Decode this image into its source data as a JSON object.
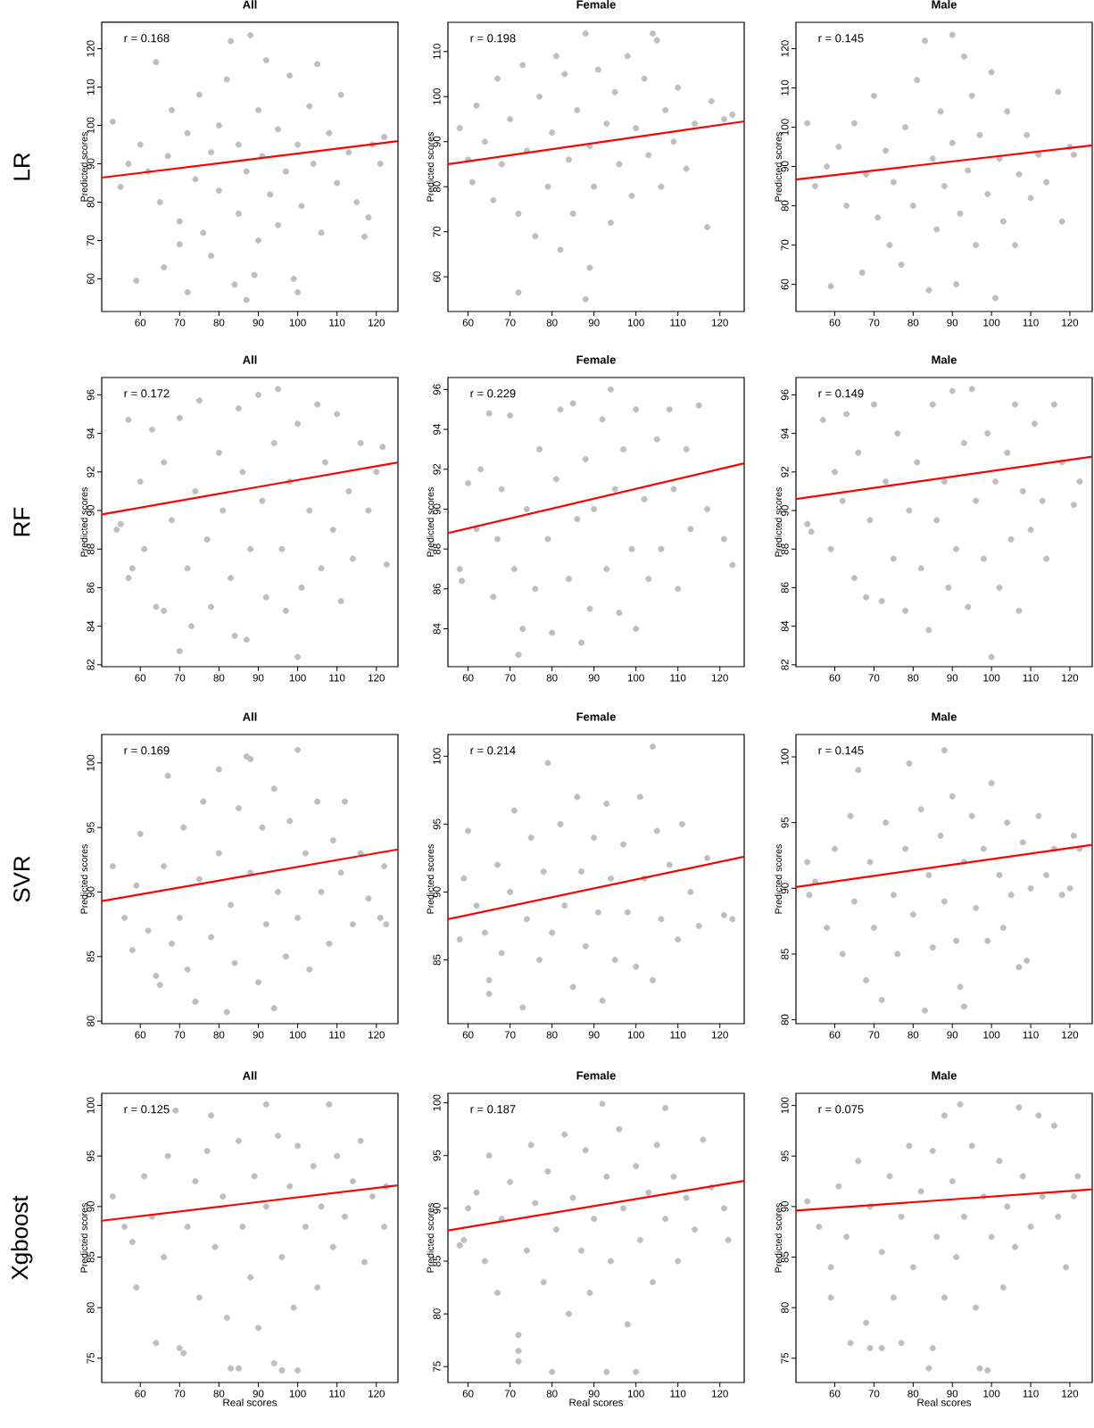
{
  "chart_data": [
    {
      "type": "scatter",
      "title": "All",
      "subtitle": "LR",
      "ylabel": "Predicted scores",
      "annotations": [
        "r = 0.168"
      ],
      "xlim": [
        50.2,
        125.5
      ],
      "ylim": [
        51.5,
        126.9
      ],
      "xticks": [
        60,
        70,
        80,
        90,
        100,
        110,
        120
      ],
      "yticks": [
        60,
        70,
        80,
        90,
        100,
        110,
        120
      ],
      "series": [
        {
          "color": "#bebebe",
          "marker": "circle",
          "x": [
            53,
            55,
            57,
            59,
            60,
            62,
            64,
            65,
            66,
            67,
            68,
            70,
            70,
            72,
            72,
            74,
            75,
            76,
            78,
            78,
            80,
            80,
            82,
            83,
            84,
            85,
            85,
            87,
            87,
            88,
            89,
            90,
            90,
            91,
            92,
            93,
            95,
            95,
            97,
            98,
            99,
            100,
            100,
            101,
            103,
            104,
            105,
            106,
            108,
            110,
            111,
            113,
            115,
            117,
            118,
            119,
            121,
            122
          ],
          "values": [
            101,
            84,
            90,
            59.5,
            95,
            88,
            116.5,
            80,
            63,
            92,
            104,
            75,
            69,
            56.5,
            98,
            86,
            108,
            72,
            93,
            66,
            83,
            100,
            112,
            122,
            58.5,
            77,
            95,
            54.5,
            88,
            123.5,
            61,
            104,
            70,
            92,
            117,
            82,
            99,
            74,
            88,
            113,
            60,
            56.5,
            95,
            79,
            105,
            90,
            116,
            72,
            98,
            85,
            108,
            93,
            80,
            71,
            76,
            95,
            90,
            97
          ]
        },
        {
          "type": "line",
          "color": "#ff0000",
          "x": [
            50.2,
            125.5
          ],
          "values": [
            86.4,
            95.9
          ]
        }
      ]
    },
    {
      "type": "scatter",
      "title": "Female",
      "ylabel": "Predicted scores",
      "annotations": [
        "r = 0.198"
      ],
      "xlim": [
        55.2,
        125.8
      ],
      "ylim": [
        52.3,
        116.5
      ],
      "xticks": [
        60,
        70,
        80,
        90,
        100,
        110,
        120
      ],
      "yticks": [
        60,
        70,
        80,
        90,
        100,
        110
      ],
      "series": [
        {
          "color": "#bebebe",
          "marker": "circle",
          "x": [
            58,
            60,
            61,
            62,
            64,
            66,
            67,
            68,
            70,
            72,
            72,
            73,
            74,
            76,
            77,
            79,
            80,
            81,
            82,
            83,
            84,
            85,
            86,
            88,
            88,
            89,
            89,
            90,
            91,
            93,
            94,
            95,
            96,
            98,
            99,
            100,
            102,
            103,
            104,
            105,
            106,
            107,
            109,
            110,
            112,
            114,
            117,
            118,
            121,
            123
          ],
          "values": [
            93,
            86,
            81,
            98,
            90,
            77,
            104,
            85,
            95,
            56.5,
            74,
            107,
            88,
            69,
            100,
            80,
            92,
            109,
            66,
            105,
            86,
            74,
            97,
            55,
            114,
            62,
            89,
            80,
            106,
            94,
            72,
            101,
            85,
            109,
            78,
            93,
            104,
            87,
            114,
            112.5,
            80,
            97,
            90,
            102,
            84,
            94,
            71,
            99,
            95,
            96
          ]
        },
        {
          "type": "line",
          "color": "#ff0000",
          "x": [
            55.2,
            125.8
          ],
          "values": [
            85.0,
            94.5
          ]
        }
      ]
    },
    {
      "type": "scatter",
      "title": "Male",
      "ylabel": "Predicted scores",
      "annotations": [
        "r = 0.145"
      ],
      "xlim": [
        50.1,
        125.7
      ],
      "ylim": [
        53.1,
        126.7
      ],
      "xticks": [
        60,
        70,
        80,
        90,
        100,
        110,
        120
      ],
      "yticks": [
        60,
        70,
        80,
        90,
        100,
        110,
        120
      ],
      "series": [
        {
          "color": "#bebebe",
          "marker": "circle",
          "x": [
            53,
            55,
            58,
            59,
            61,
            63,
            65,
            67,
            68,
            70,
            71,
            73,
            74,
            75,
            77,
            78,
            80,
            81,
            83,
            84,
            85,
            86,
            87,
            88,
            90,
            90,
            91,
            92,
            93,
            94,
            95,
            96,
            97,
            99,
            100,
            101,
            102,
            103,
            104,
            106,
            107,
            109,
            110,
            112,
            114,
            117,
            118,
            120,
            121
          ],
          "values": [
            101,
            85,
            90,
            59.5,
            95,
            80,
            101,
            63,
            88,
            108,
            77,
            94,
            70,
            86,
            65,
            100,
            80,
            112,
            122,
            58.5,
            92,
            74,
            104,
            85,
            123.5,
            96,
            60,
            78,
            118,
            89,
            108,
            70,
            98,
            83,
            114,
            56.5,
            92,
            76,
            104,
            70,
            88,
            98,
            82,
            93,
            86,
            109,
            76,
            95,
            93
          ]
        },
        {
          "type": "line",
          "color": "#ff0000",
          "x": [
            50.1,
            125.7
          ],
          "values": [
            86.7,
            95.4
          ]
        }
      ]
    },
    {
      "type": "scatter",
      "title": "All",
      "subtitle": "RF",
      "ylabel": "Predicted scores",
      "annotations": [
        "r = 0.172"
      ],
      "xlim": [
        50.2,
        125.5
      ],
      "ylim": [
        81.9,
        96.9
      ],
      "xticks": [
        60,
        70,
        80,
        90,
        100,
        110,
        120
      ],
      "yticks": [
        82,
        84,
        86,
        88,
        90,
        92,
        94,
        96
      ],
      "series": [
        {
          "color": "#bebebe",
          "marker": "circle",
          "x": [
            54,
            55,
            57,
            57,
            58,
            60,
            61,
            63,
            64,
            66,
            66,
            68,
            70,
            70,
            72,
            73,
            74,
            75,
            77,
            78,
            80,
            81,
            83,
            84,
            85,
            86,
            87,
            88,
            90,
            91,
            92,
            94,
            95,
            96,
            97,
            98,
            100,
            100,
            101,
            103,
            105,
            106,
            107,
            109,
            110,
            111,
            113,
            114,
            116,
            118,
            120,
            121.6,
            122.6
          ],
          "values": [
            89,
            89.3,
            86.5,
            94.7,
            87,
            91.5,
            88,
            94.2,
            85,
            84.8,
            92.5,
            89.5,
            82.7,
            94.8,
            87,
            84,
            91,
            95.7,
            88.5,
            85,
            93,
            90,
            86.5,
            83.5,
            95.3,
            92,
            83.3,
            88,
            96,
            90.5,
            85.5,
            93.5,
            96.3,
            88,
            84.8,
            91.5,
            82.4,
            94.5,
            86,
            90,
            95.5,
            87,
            92.5,
            89,
            95,
            85.3,
            91,
            87.5,
            93.5,
            90,
            92,
            93.3,
            87.2
          ]
        },
        {
          "type": "line",
          "color": "#ff0000",
          "x": [
            50.2,
            125.5
          ],
          "values": [
            89.8,
            92.5
          ]
        }
      ]
    },
    {
      "type": "scatter",
      "title": "Female",
      "ylabel": "Predicted scores",
      "annotations": [
        "r = 0.229"
      ],
      "xlim": [
        55.2,
        125.8
      ],
      "ylim": [
        82.1,
        96.6
      ],
      "xticks": [
        60,
        70,
        80,
        90,
        100,
        110,
        120
      ],
      "yticks": [
        84,
        86,
        88,
        90,
        92,
        94,
        96
      ],
      "series": [
        {
          "color": "#bebebe",
          "marker": "circle",
          "x": [
            58,
            58.5,
            60,
            62,
            63,
            65,
            66,
            67,
            68,
            70,
            71,
            72,
            73,
            74,
            76,
            77,
            79,
            80,
            81,
            82,
            84,
            85,
            86,
            87,
            88,
            89,
            90,
            92,
            93,
            94,
            95,
            96,
            97,
            99,
            100,
            100,
            102,
            103,
            105,
            106,
            108,
            109,
            110,
            112,
            113,
            115,
            117,
            121,
            123
          ],
          "values": [
            87,
            86.4,
            91.3,
            89,
            92,
            94.8,
            85.6,
            88.5,
            91,
            94.7,
            87,
            82.7,
            84,
            90,
            86,
            93,
            88.5,
            83.8,
            91.5,
            95,
            86.5,
            95.3,
            89.5,
            83.3,
            92.5,
            85,
            90,
            94.5,
            87,
            96,
            91,
            84.8,
            93,
            88,
            84,
            95,
            90.5,
            86.5,
            93.5,
            88,
            95,
            91,
            86,
            93,
            89,
            95.2,
            90,
            88.5,
            87.2
          ]
        },
        {
          "type": "line",
          "color": "#ff0000",
          "x": [
            55.2,
            125.8
          ],
          "values": [
            88.8,
            92.3
          ]
        }
      ]
    },
    {
      "type": "scatter",
      "title": "Male",
      "ylabel": "Predicted scores",
      "annotations": [
        "r = 0.149"
      ],
      "xlim": [
        50.1,
        125.7
      ],
      "ylim": [
        81.9,
        96.9
      ],
      "xticks": [
        60,
        70,
        80,
        90,
        100,
        110,
        120
      ],
      "yticks": [
        82,
        84,
        86,
        88,
        90,
        92,
        94,
        96
      ],
      "series": [
        {
          "color": "#bebebe",
          "marker": "circle",
          "x": [
            53,
            54,
            57,
            59,
            60,
            62,
            63,
            65,
            66,
            68,
            69,
            70,
            72,
            73,
            75,
            76,
            78,
            79,
            81,
            82,
            84,
            85,
            86,
            88,
            89,
            90,
            91,
            93,
            94,
            95,
            96,
            98,
            99,
            100,
            101,
            102,
            104,
            105,
            106,
            107,
            108,
            110,
            111,
            113,
            114,
            116,
            118,
            121,
            122.5
          ],
          "values": [
            89.3,
            88.9,
            94.7,
            88,
            92,
            90.5,
            95,
            86.5,
            93,
            85.5,
            89.5,
            95.5,
            85.3,
            91.5,
            87.5,
            94,
            84.8,
            90,
            92.5,
            87,
            83.8,
            95.5,
            89.5,
            91.5,
            86,
            96.2,
            88,
            93.5,
            85,
            96.3,
            90.5,
            87.5,
            94,
            82.4,
            91.5,
            86,
            93,
            88.5,
            95.5,
            84.8,
            91,
            89,
            94.5,
            90.5,
            87.5,
            95.5,
            92.5,
            90.3,
            91.5
          ]
        },
        {
          "type": "line",
          "color": "#ff0000",
          "x": [
            50.1,
            125.7
          ],
          "values": [
            90.6,
            92.8
          ]
        }
      ]
    },
    {
      "type": "scatter",
      "title": "All",
      "subtitle": "SVR",
      "ylabel": "Predicted scores",
      "annotations": [
        "r = 0.169"
      ],
      "xlim": [
        50.2,
        125.5
      ],
      "ylim": [
        79.8,
        102.2
      ],
      "xticks": [
        60,
        70,
        80,
        90,
        100,
        110,
        120
      ],
      "yticks": [
        80,
        85,
        90,
        95,
        100
      ],
      "series": [
        {
          "color": "#bebebe",
          "marker": "circle",
          "x": [
            53,
            56,
            58,
            59,
            60,
            62,
            64,
            65,
            66,
            67,
            68,
            70,
            71,
            72,
            74,
            75,
            76,
            78,
            80,
            80,
            82,
            83,
            84,
            85,
            87,
            88,
            88,
            90,
            91,
            92,
            94,
            94,
            95,
            97,
            98,
            100,
            100,
            102,
            103,
            105,
            106,
            108,
            109,
            111,
            112,
            114,
            116,
            118,
            121,
            122,
            122.5
          ],
          "values": [
            92,
            88,
            85.5,
            90.5,
            94.5,
            87,
            83.5,
            82.8,
            92,
            99,
            86,
            88,
            95,
            84,
            81.5,
            91,
            97,
            86.5,
            99.5,
            93,
            80.7,
            89,
            84.5,
            96.5,
            100.5,
            100.3,
            91.5,
            83,
            95,
            87.5,
            81,
            98,
            90,
            85,
            95.5,
            101,
            88,
            93,
            84,
            97,
            90,
            86,
            94,
            91.5,
            97,
            87.5,
            93,
            89.5,
            88,
            92,
            87.5
          ]
        },
        {
          "type": "line",
          "color": "#ff0000",
          "x": [
            50.2,
            125.5
          ],
          "values": [
            89.3,
            93.3
          ]
        }
      ]
    },
    {
      "type": "scatter",
      "title": "Female",
      "ylabel": "Predicted scores",
      "annotations": [
        "r = 0.214"
      ],
      "xlim": [
        55.2,
        125.8
      ],
      "ylim": [
        80.3,
        101.6
      ],
      "xticks": [
        60,
        70,
        80,
        90,
        100,
        110,
        120
      ],
      "yticks": [
        85,
        90,
        95,
        100
      ],
      "series": [
        {
          "color": "#bebebe",
          "marker": "circle",
          "x": [
            58,
            59,
            60,
            62,
            64,
            65,
            65,
            67,
            68,
            70,
            71,
            73,
            74,
            75,
            77,
            78,
            79,
            80,
            82,
            83,
            85,
            86,
            87,
            88,
            90,
            91,
            92,
            93,
            94,
            95,
            97,
            98,
            100,
            101,
            102,
            104,
            104,
            105,
            106,
            108,
            110,
            111,
            113,
            115,
            117,
            121,
            123
          ],
          "values": [
            86.5,
            91,
            94.5,
            89,
            87,
            83.5,
            82.5,
            92,
            85.5,
            90,
            96,
            81.5,
            88,
            94,
            85,
            91.5,
            99.5,
            87,
            95,
            89,
            83,
            97,
            91.5,
            86,
            94,
            88.5,
            82,
            96.5,
            91,
            85,
            93.5,
            88.5,
            84.5,
            97,
            91,
            83.5,
            100.7,
            94.5,
            88,
            92,
            86.5,
            95,
            90,
            87.5,
            92.5,
            88.3,
            88
          ]
        },
        {
          "type": "line",
          "color": "#ff0000",
          "x": [
            55.2,
            125.8
          ],
          "values": [
            88.0,
            92.6
          ]
        }
      ]
    },
    {
      "type": "scatter",
      "title": "Male",
      "ylabel": "Predicted scores",
      "annotations": [
        "r = 0.145"
      ],
      "xlim": [
        50.1,
        125.7
      ],
      "ylim": [
        79.7,
        101.7
      ],
      "xticks": [
        60,
        70,
        80,
        90,
        100,
        110,
        120
      ],
      "yticks": [
        80,
        85,
        90,
        95,
        100
      ],
      "series": [
        {
          "color": "#bebebe",
          "marker": "circle",
          "x": [
            53,
            53.5,
            55,
            58,
            60,
            62,
            64,
            65,
            66,
            68,
            69,
            70,
            72,
            73,
            75,
            76,
            78,
            79,
            80,
            82,
            83,
            84,
            85,
            87,
            88,
            88,
            90,
            91,
            92,
            93,
            93,
            95,
            96,
            98,
            99,
            100,
            102,
            103,
            104,
            105,
            107,
            108,
            109,
            110,
            112,
            114,
            116,
            118,
            120,
            121,
            122.5
          ],
          "values": [
            92,
            89.5,
            90.5,
            87,
            93,
            85,
            95.5,
            89,
            99,
            83,
            92,
            87,
            81.5,
            95,
            89.5,
            85,
            93,
            99.5,
            88,
            96,
            80.7,
            91,
            85.5,
            94,
            100.5,
            89,
            97,
            86,
            82.5,
            81,
            92,
            95.5,
            88.5,
            93,
            86,
            98,
            91,
            87,
            95,
            89.5,
            84,
            93.5,
            84.5,
            90,
            95.5,
            91,
            93,
            89.5,
            90,
            94,
            93
          ]
        },
        {
          "type": "line",
          "color": "#ff0000",
          "x": [
            50.1,
            125.7
          ],
          "values": [
            90.1,
            93.3
          ]
        }
      ]
    },
    {
      "type": "scatter",
      "title": "All",
      "subtitle": "Xgboost",
      "xlabel": "Real scores",
      "ylabel": "Predicted scores",
      "annotations": [
        "r = 0.125"
      ],
      "xlim": [
        50.2,
        125.5
      ],
      "ylim": [
        72.6,
        101.2
      ],
      "xticks": [
        60,
        70,
        80,
        90,
        100,
        110,
        120
      ],
      "yticks": [
        75,
        80,
        85,
        90,
        95,
        100
      ],
      "series": [
        {
          "color": "#bebebe",
          "marker": "circle",
          "x": [
            53,
            56,
            58,
            59,
            61,
            63,
            64,
            66,
            67,
            69,
            70,
            71,
            72,
            74,
            75,
            77,
            78,
            79,
            81,
            82,
            83,
            85,
            85,
            86,
            88,
            89,
            90,
            92,
            92,
            94,
            95,
            96,
            96,
            98,
            99,
            100,
            100,
            102,
            104,
            105,
            106,
            108,
            109,
            110,
            112,
            114,
            116,
            117,
            119,
            122,
            122.5
          ],
          "values": [
            91,
            88,
            86.5,
            82,
            93,
            89,
            76.5,
            85,
            95,
            99.5,
            76,
            75.5,
            88,
            92.5,
            81,
            95.5,
            99,
            86,
            91,
            79,
            74,
            74,
            96.5,
            88,
            83,
            93,
            78,
            100.1,
            90,
            74.5,
            97,
            73.8,
            85,
            92,
            80,
            73.8,
            96,
            88,
            94,
            82,
            90,
            100.1,
            86,
            95,
            89,
            92.5,
            96.5,
            84.5,
            91,
            88,
            92
          ]
        },
        {
          "type": "line",
          "color": "#ff0000",
          "x": [
            50.2,
            125.5
          ],
          "values": [
            88.6,
            92.1
          ]
        }
      ]
    },
    {
      "type": "scatter",
      "title": "Female",
      "xlabel": "Real scores",
      "ylabel": "Predicted scores",
      "annotations": [
        "r = 0.187"
      ],
      "xlim": [
        55.2,
        125.8
      ],
      "ylim": [
        73.5,
        100.9
      ],
      "xticks": [
        60,
        70,
        80,
        90,
        100,
        110,
        120
      ],
      "yticks": [
        75,
        80,
        85,
        90,
        95,
        100
      ],
      "series": [
        {
          "color": "#bebebe",
          "marker": "circle",
          "x": [
            58,
            59,
            60,
            62,
            64,
            65,
            67,
            68,
            70,
            72,
            72,
            72,
            74,
            75,
            76,
            78,
            79,
            80,
            81,
            83,
            84,
            85,
            87,
            88,
            89,
            90,
            92,
            93,
            93,
            94,
            96,
            97,
            98,
            100,
            100,
            101,
            103,
            104,
            105,
            107,
            107,
            109,
            110,
            112,
            114,
            116,
            118,
            121,
            122
          ],
          "values": [
            86.5,
            87,
            90,
            91.5,
            85,
            95,
            82,
            89,
            92.5,
            78,
            76.5,
            75.5,
            86,
            96,
            90.5,
            83,
            93.5,
            74.5,
            88,
            97,
            80,
            91,
            86,
            95.5,
            82,
            89,
            99.9,
            74.5,
            93,
            85,
            97.5,
            90,
            79,
            74.5,
            94,
            87,
            91.5,
            83,
            96,
            99.5,
            89,
            93,
            85,
            91,
            88,
            96.5,
            92,
            90,
            87
          ]
        },
        {
          "type": "line",
          "color": "#ff0000",
          "x": [
            55.2,
            125.8
          ],
          "values": [
            87.9,
            92.6
          ]
        }
      ]
    },
    {
      "type": "scatter",
      "title": "Male",
      "xlabel": "Real scores",
      "ylabel": "Predicted scores",
      "annotations": [
        "r = 0.075"
      ],
      "xlim": [
        50.1,
        125.7
      ],
      "ylim": [
        72.6,
        101.2
      ],
      "xticks": [
        60,
        70,
        80,
        90,
        100,
        110,
        120
      ],
      "yticks": [
        75,
        80,
        85,
        90,
        95,
        100
      ],
      "series": [
        {
          "color": "#bebebe",
          "marker": "circle",
          "x": [
            53,
            56,
            59,
            59,
            61,
            63,
            64,
            66,
            68,
            69,
            69,
            72,
            72,
            74,
            75,
            77,
            77,
            79,
            80,
            82,
            84,
            85,
            85,
            86,
            88,
            88,
            90,
            91,
            92,
            93,
            95,
            96,
            97,
            98,
            99,
            100,
            102,
            103,
            104,
            106,
            107,
            108,
            110,
            112,
            113,
            116,
            117,
            119,
            121,
            122
          ],
          "values": [
            90.5,
            88,
            84,
            81,
            92,
            87,
            76.5,
            94.5,
            78.5,
            76,
            90,
            76,
            85.5,
            93,
            81,
            76.5,
            89,
            96,
            84,
            91.5,
            74,
            76,
            95.5,
            87,
            99,
            81,
            92.5,
            85,
            100.1,
            89,
            96,
            80,
            74,
            91,
            73.8,
            87,
            94.5,
            82,
            90,
            86,
            99.8,
            93,
            88,
            99,
            91,
            98,
            89,
            84,
            91,
            93
          ]
        },
        {
          "type": "line",
          "color": "#ff0000",
          "x": [
            50.1,
            125.7
          ],
          "values": [
            89.6,
            91.7
          ]
        }
      ]
    }
  ]
}
